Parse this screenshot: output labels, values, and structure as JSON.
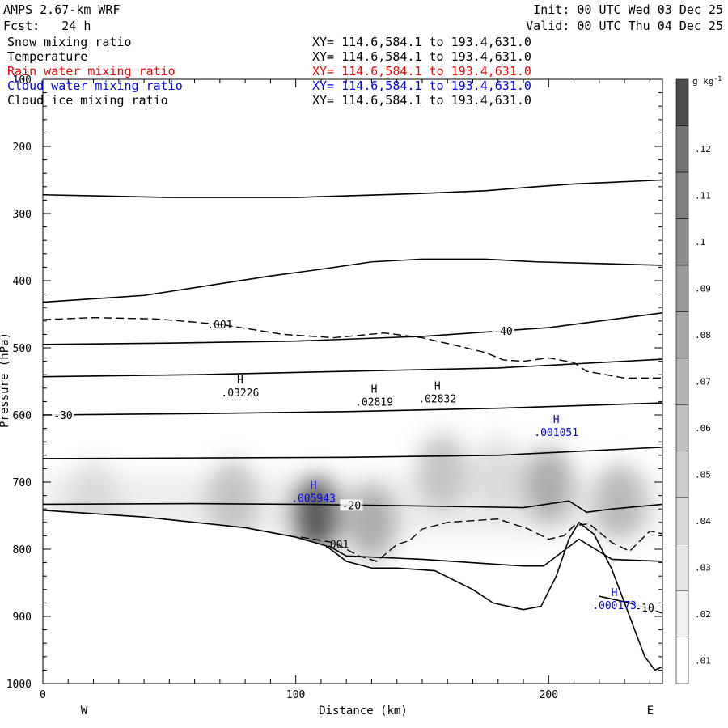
{
  "header": {
    "model": "AMPS 2.67-km WRF",
    "fcst": "Fcst:   24 h",
    "init": "Init: 00 UTC Wed 03 Dec 25",
    "valid": "Valid: 00 UTC Thu 04 Dec 25"
  },
  "fields": [
    {
      "name": "Snow mixing ratio",
      "xy": "XY= 114.6,584.1 to 193.4,631.0",
      "color": "#000000"
    },
    {
      "name": "Temperature",
      "xy": "XY= 114.6,584.1 to 193.4,631.0",
      "color": "#000000"
    },
    {
      "name": "Rain water mixing ratio",
      "xy": "XY= 114.6,584.1 to 193.4,631.0",
      "color": "#ff0000"
    },
    {
      "name": "Cloud water mixing ratio",
      "xy": "XY= 114.6,584.1 to 193.4,631.0",
      "color": "#0000ff"
    },
    {
      "name": "Cloud ice mixing ratio",
      "xy": "XY= 114.6,584.1 to 193.4,631.0",
      "color": "#000000"
    }
  ],
  "chart_data": {
    "type": "heatmap",
    "xlabel": "Distance (km)",
    "ylabel": "Pressure (hPa)",
    "xlim": [
      0,
      245
    ],
    "ylim": [
      1000,
      100
    ],
    "x_ticks": [
      0,
      100,
      200
    ],
    "y_ticks": [
      100,
      200,
      300,
      400,
      500,
      600,
      700,
      800,
      900,
      1000
    ],
    "x_direction_labels": {
      "left": "W",
      "right": "E"
    },
    "colorbar": {
      "units": "g kg",
      "units_exp": "-1",
      "ticks": [
        ".01",
        ".02",
        ".03",
        ".04",
        ".05",
        ".06",
        ".07",
        ".08",
        ".09",
        ".1",
        ".11",
        ".12"
      ],
      "levels": [
        0.005,
        0.125
      ],
      "colors_light_to_dark": [
        "#ffffff",
        "#f2f2f2",
        "#e6e6e6",
        "#d9d9d9",
        "#cccccc",
        "#bfbfbf",
        "#b3b3b3",
        "#a6a6a6",
        "#999999",
        "#8c8c8c",
        "#7f7f7f",
        "#737373",
        "#4d4d4d"
      ]
    },
    "shading_blobs": [
      {
        "x": 75,
        "p": 725,
        "val": 0.05
      },
      {
        "x": 108,
        "p": 748,
        "val": 0.12
      },
      {
        "x": 130,
        "p": 760,
        "val": 0.075
      },
      {
        "x": 158,
        "p": 685,
        "val": 0.05
      },
      {
        "x": 200,
        "p": 705,
        "val": 0.07
      },
      {
        "x": 228,
        "p": 730,
        "val": 0.065
      },
      {
        "x": 20,
        "p": 725,
        "val": 0.03
      },
      {
        "x": 180,
        "p": 690,
        "val": 0.035
      }
    ],
    "terrain_profile": [
      [
        0,
        742
      ],
      [
        40,
        752
      ],
      [
        80,
        768
      ],
      [
        100,
        782
      ],
      [
        112,
        795
      ],
      [
        120,
        818
      ],
      [
        130,
        828
      ],
      [
        140,
        828
      ],
      [
        155,
        832
      ],
      [
        170,
        860
      ],
      [
        178,
        880
      ],
      [
        190,
        890
      ],
      [
        197,
        885
      ],
      [
        203,
        840
      ],
      [
        208,
        785
      ],
      [
        212,
        760
      ],
      [
        218,
        778
      ],
      [
        225,
        830
      ],
      [
        232,
        900
      ],
      [
        238,
        960
      ],
      [
        242,
        980
      ],
      [
        245,
        975
      ]
    ],
    "temperature_isotherms": [
      {
        "label": "",
        "points": [
          [
            0,
            272
          ],
          [
            50,
            276
          ],
          [
            100,
            276
          ],
          [
            150,
            270
          ],
          [
            175,
            266
          ],
          [
            195,
            260
          ],
          [
            210,
            256
          ],
          [
            245,
            250
          ]
        ]
      },
      {
        "label": "",
        "points": [
          [
            0,
            432
          ],
          [
            40,
            422
          ],
          [
            90,
            393
          ],
          [
            110,
            383
          ],
          [
            130,
            372
          ],
          [
            150,
            368
          ],
          [
            175,
            368
          ],
          [
            195,
            372
          ],
          [
            245,
            377
          ]
        ]
      },
      {
        "label": "-40",
        "label_x": 182,
        "points": [
          [
            0,
            495
          ],
          [
            50,
            493
          ],
          [
            100,
            490
          ],
          [
            150,
            483
          ],
          [
            200,
            470
          ],
          [
            245,
            448
          ]
        ]
      },
      {
        "label": "",
        "points": [
          [
            0,
            543
          ],
          [
            60,
            540
          ],
          [
            120,
            535
          ],
          [
            180,
            530
          ],
          [
            245,
            517
          ]
        ]
      },
      {
        "label": "-30",
        "label_x": 8,
        "points": [
          [
            0,
            600
          ],
          [
            60,
            598
          ],
          [
            120,
            595
          ],
          [
            180,
            590
          ],
          [
            245,
            582
          ]
        ]
      },
      {
        "label": "",
        "points": [
          [
            0,
            665
          ],
          [
            60,
            664
          ],
          [
            120,
            663
          ],
          [
            180,
            660
          ],
          [
            245,
            648
          ]
        ]
      },
      {
        "label": "-20",
        "label_x": 122,
        "points": [
          [
            0,
            733
          ],
          [
            60,
            732
          ],
          [
            100,
            733
          ],
          [
            140,
            735
          ],
          [
            190,
            738
          ],
          [
            208,
            728
          ],
          [
            215,
            745
          ],
          [
            225,
            740
          ],
          [
            245,
            733
          ]
        ]
      },
      {
        "label": "",
        "points": [
          [
            113,
            795
          ],
          [
            120,
            810
          ],
          [
            150,
            815
          ],
          [
            190,
            825
          ],
          [
            198,
            825
          ],
          [
            205,
            805
          ],
          [
            212,
            785
          ],
          [
            225,
            815
          ],
          [
            245,
            818
          ]
        ]
      },
      {
        "label": "-10",
        "label_x": 238,
        "points": [
          [
            220,
            870
          ],
          [
            232,
            880
          ],
          [
            245,
            895
          ]
        ]
      }
    ],
    "snow_dashed_0.001": [
      {
        "label": ".001",
        "label_x": 70,
        "points": [
          [
            0,
            458
          ],
          [
            20,
            455
          ],
          [
            45,
            457
          ],
          [
            70,
            465
          ],
          [
            95,
            480
          ],
          [
            115,
            485
          ],
          [
            135,
            478
          ],
          [
            150,
            485
          ],
          [
            165,
            498
          ],
          [
            175,
            507
          ],
          [
            182,
            518
          ],
          [
            190,
            520
          ],
          [
            200,
            515
          ],
          [
            210,
            522
          ],
          [
            215,
            535
          ],
          [
            230,
            545
          ],
          [
            245,
            545
          ]
        ]
      },
      {
        "label": ".001",
        "label_x": 116,
        "points": [
          [
            102,
            782
          ],
          [
            115,
            790
          ],
          [
            125,
            810
          ],
          [
            132,
            818
          ],
          [
            140,
            793
          ],
          [
            145,
            787
          ],
          [
            150,
            770
          ],
          [
            160,
            760
          ],
          [
            180,
            755
          ],
          [
            192,
            770
          ],
          [
            200,
            785
          ],
          [
            206,
            780
          ],
          [
            210,
            765
          ],
          [
            216,
            762
          ],
          [
            225,
            790
          ],
          [
            232,
            803
          ],
          [
            240,
            773
          ],
          [
            245,
            777
          ]
        ]
      }
    ],
    "maxima_markers": [
      {
        "label": "H",
        "value": ".03226",
        "x": 78,
        "p": 553,
        "color": "#000000"
      },
      {
        "label": "H",
        "value": ".02819",
        "x": 131,
        "p": 567,
        "color": "#000000"
      },
      {
        "label": "H",
        "value": ".02832",
        "x": 156,
        "p": 562,
        "color": "#000000"
      },
      {
        "label": "H",
        "value": ".001051",
        "x": 203,
        "p": 612,
        "color": "#0000ff"
      },
      {
        "label": "H",
        "value": ".005943",
        "x": 107,
        "p": 710,
        "color": "#0000ff"
      },
      {
        "label": "H",
        "value": ".000173",
        "x": 226,
        "p": 870,
        "color": "#0000ff"
      }
    ]
  }
}
